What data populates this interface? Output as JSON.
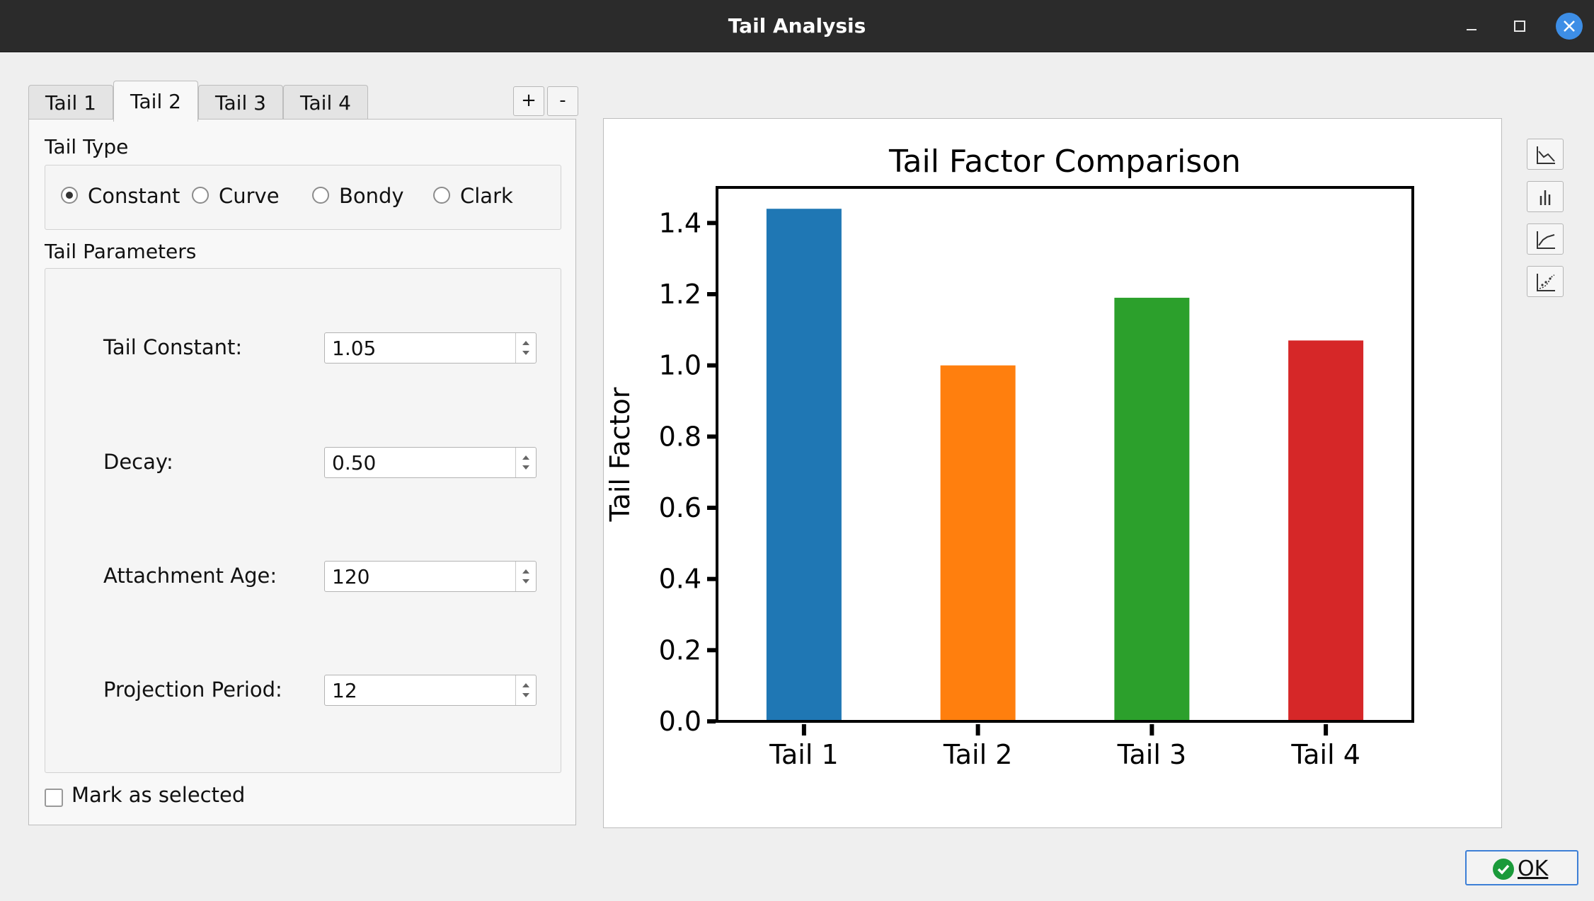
{
  "window": {
    "title": "Tail Analysis"
  },
  "tabs": [
    {
      "label": "Tail 1",
      "active": false
    },
    {
      "label": "Tail 2",
      "active": true
    },
    {
      "label": "Tail 3",
      "active": false
    },
    {
      "label": "Tail 4",
      "active": false
    }
  ],
  "tab_controls": {
    "add_label": "+",
    "remove_label": "-"
  },
  "tail_type": {
    "heading": "Tail Type",
    "options": [
      "Constant",
      "Curve",
      "Bondy",
      "Clark"
    ],
    "selected": "Constant"
  },
  "tail_parameters": {
    "heading": "Tail Parameters",
    "fields": [
      {
        "label": "Tail Constant:",
        "value": "1.05"
      },
      {
        "label": "Decay:",
        "value": "0.50"
      },
      {
        "label": "Attachment Age:",
        "value": "120"
      },
      {
        "label": "Projection Period:",
        "value": "12"
      }
    ]
  },
  "mark_selected": {
    "label": "Mark as selected",
    "checked": false
  },
  "plot_tools": [
    "line-chart-icon",
    "bar-chart-icon",
    "cumulative-chart-icon",
    "scatter-chart-icon"
  ],
  "ok_button": {
    "label": "OK"
  },
  "chart_data": {
    "type": "bar",
    "title": "Tail Factor Comparison",
    "xlabel": "",
    "ylabel": "Tail Factor",
    "categories": [
      "Tail 1",
      "Tail 2",
      "Tail 3",
      "Tail 4"
    ],
    "values": [
      1.44,
      1.0,
      1.19,
      1.07
    ],
    "colors": [
      "#1f77b4",
      "#ff7f0e",
      "#2ca02c",
      "#d62728"
    ],
    "ylim": [
      0,
      1.5
    ],
    "yticks": [
      "0.0",
      "0.2",
      "0.4",
      "0.6",
      "0.8",
      "1.0",
      "1.2",
      "1.4"
    ],
    "grid": false,
    "style": "xkcd"
  }
}
